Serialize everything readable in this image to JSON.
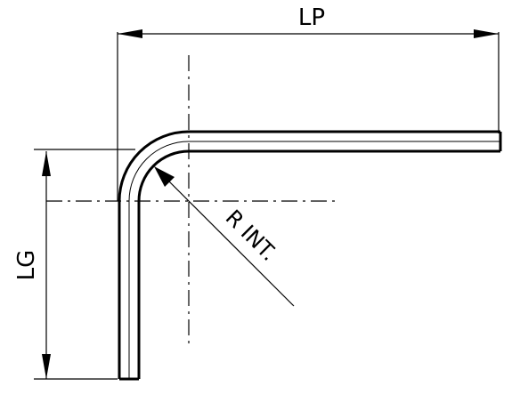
{
  "dimensions": {
    "horizontal_label": "LP",
    "vertical_label": "LG",
    "radius_label": "R INT."
  },
  "colors": {
    "line": "#000000",
    "background": "#ffffff"
  }
}
